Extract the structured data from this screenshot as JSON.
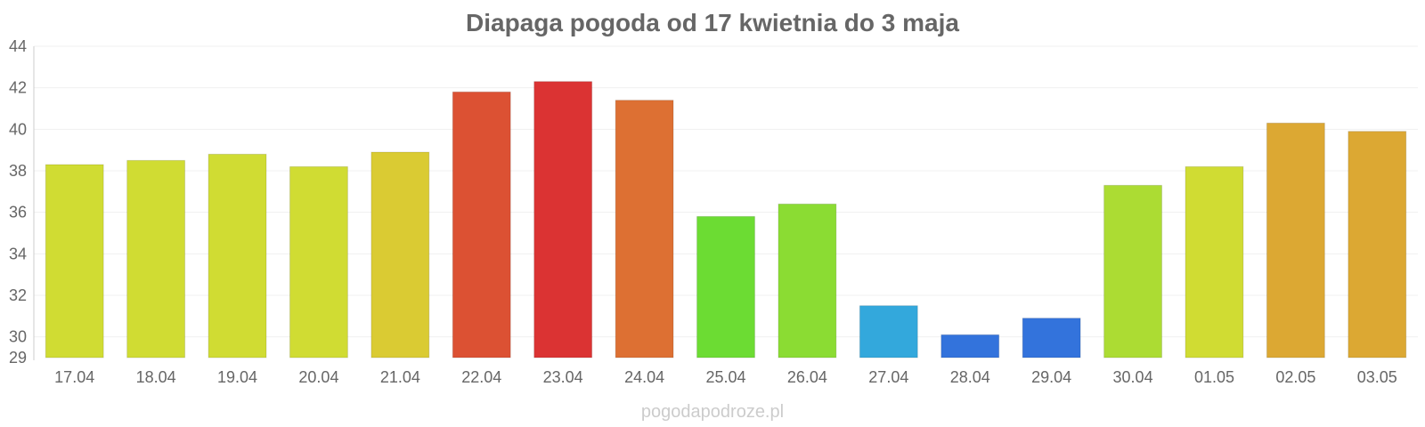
{
  "chart_data": {
    "type": "bar",
    "title": "Diapaga pogoda od 17 kwietnia do 3 maja",
    "xlabel": "",
    "ylabel": "",
    "ylim": [
      29,
      44
    ],
    "yticks": [
      29,
      30,
      32,
      34,
      36,
      38,
      40,
      42,
      44
    ],
    "grid": true,
    "legend": "none",
    "categories": [
      "17.04",
      "18.04",
      "19.04",
      "20.04",
      "21.04",
      "22.04",
      "23.04",
      "24.04",
      "25.04",
      "26.04",
      "27.04",
      "28.04",
      "29.04",
      "30.04",
      "01.05",
      "02.05",
      "03.05"
    ],
    "values": [
      38.3,
      38.5,
      38.8,
      38.2,
      38.9,
      41.8,
      42.3,
      41.4,
      35.8,
      36.4,
      31.5,
      30.1,
      30.9,
      37.3,
      38.2,
      40.3,
      39.9
    ],
    "colors": [
      "#d0dc33",
      "#d0dc33",
      "#d0dc33",
      "#d0dc33",
      "#dacb33",
      "#dc5133",
      "#db3333",
      "#dd7033",
      "#6cdc33",
      "#8bdc33",
      "#33a8dc",
      "#3373dc",
      "#3373dc",
      "#acdc33",
      "#d0dc33",
      "#dca833",
      "#dca833"
    ]
  },
  "watermark": "pogodapodroze.pl"
}
